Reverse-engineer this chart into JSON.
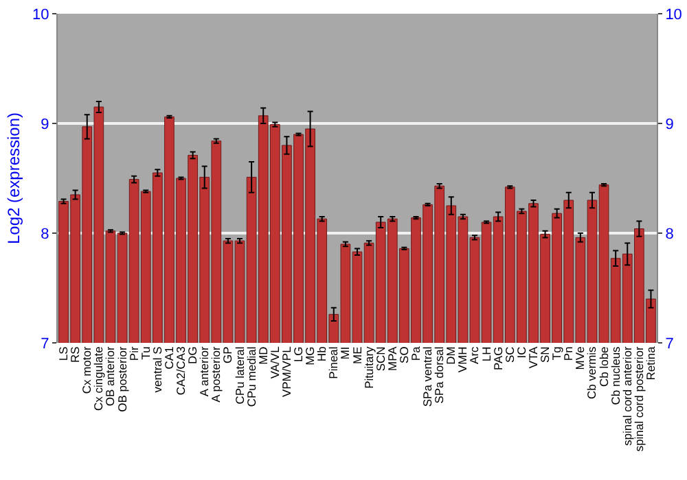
{
  "chart_data": {
    "type": "bar",
    "ylabel": "Log2 (expression)",
    "categories": [
      "LS",
      "RS",
      "Cx motor",
      "Cx cingulate",
      "OB anterior",
      "OB posterior",
      "Pir",
      "Tu",
      "ventral S",
      "CA1",
      "CA2/CA3",
      "DG",
      "A anterior",
      "A posterior",
      "GP",
      "CPu lateral",
      "CPu medial",
      "MD",
      "VA/VL",
      "VPM/VPL",
      "LG",
      "MG",
      "Hb",
      "Pineal",
      "MI",
      "ME",
      "Pituitary",
      "SCN",
      "MPA",
      "SO",
      "Pa",
      "SPa ventral",
      "SPa dorsal",
      "DM",
      "VMH",
      "Arc",
      "LH",
      "PAG",
      "SC",
      "IC",
      "VTA",
      "SN",
      "Tg",
      "Pn",
      "MVe",
      "Cb vermis",
      "Cb lobe",
      "Cb nucleus",
      "spinal cord anterior",
      "spinal cord posterior",
      "Retina"
    ],
    "series": [
      {
        "color": "#c03333",
        "values": [
          8.29,
          8.35,
          8.97,
          9.15,
          8.02,
          8.0,
          8.49,
          8.38,
          8.55,
          9.06,
          8.5,
          8.71,
          8.51,
          8.84,
          7.93,
          7.93,
          8.51,
          9.07,
          8.99,
          8.8,
          8.9,
          8.95,
          8.13,
          7.26,
          7.9,
          7.83,
          7.91,
          8.1,
          8.13,
          7.86,
          8.14,
          8.26,
          8.43,
          8.25,
          8.15,
          7.96,
          8.1,
          8.15,
          8.42,
          8.2,
          8.27,
          7.99,
          8.18,
          8.3,
          7.96,
          8.3,
          8.44,
          7.77,
          7.81,
          8.04,
          7.4
        ],
        "errors": [
          0.02,
          0.04,
          0.11,
          0.05,
          0.01,
          0.01,
          0.03,
          0.01,
          0.03,
          0.01,
          0.01,
          0.03,
          0.1,
          0.02,
          0.02,
          0.02,
          0.14,
          0.07,
          0.02,
          0.08,
          0.01,
          0.16,
          0.02,
          0.06,
          0.02,
          0.03,
          0.02,
          0.05,
          0.02,
          0.01,
          0.01,
          0.01,
          0.02,
          0.08,
          0.02,
          0.02,
          0.01,
          0.04,
          0.01,
          0.02,
          0.03,
          0.03,
          0.04,
          0.07,
          0.04,
          0.07,
          0.01,
          0.07,
          0.1,
          0.07,
          0.08
        ]
      }
    ],
    "ylim": [
      7,
      10
    ],
    "yticks": [
      7,
      8,
      9,
      10
    ],
    "y2lim": [
      7,
      10
    ],
    "y2ticks": [
      7,
      8,
      9,
      10
    ],
    "grid": "y",
    "legend": false
  }
}
